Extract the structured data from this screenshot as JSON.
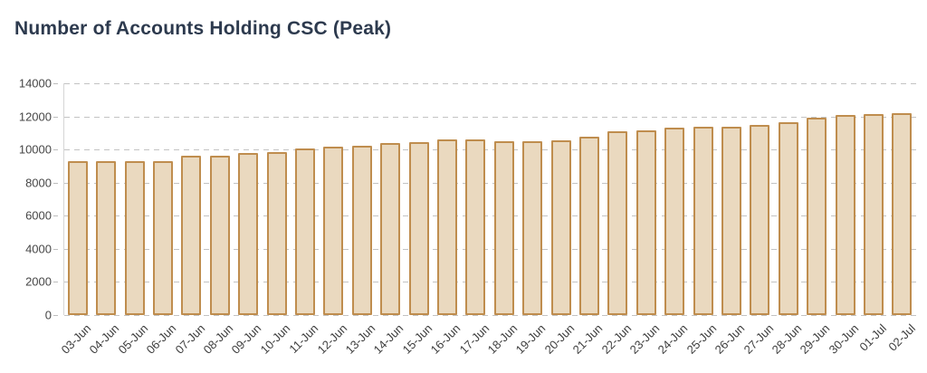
{
  "chart_data": {
    "type": "bar",
    "title": "Number of Accounts Holding CSC (Peak)",
    "xlabel": "",
    "ylabel": "",
    "categories": [
      "03-Jun",
      "04-Jun",
      "05-Jun",
      "06-Jun",
      "07-Jun",
      "08-Jun",
      "09-Jun",
      "10-Jun",
      "11-Jun",
      "12-Jun",
      "13-Jun",
      "14-Jun",
      "15-Jun",
      "16-Jun",
      "17-Jun",
      "18-Jun",
      "19-Jun",
      "20-Jun",
      "21-Jun",
      "22-Jun",
      "23-Jun",
      "24-Jun",
      "25-Jun",
      "26-Jun",
      "27-Jun",
      "28-Jun",
      "29-Jun",
      "30-Jun",
      "01-Jul",
      "02-Jul"
    ],
    "values": [
      9300,
      9300,
      9300,
      9300,
      9600,
      9600,
      9800,
      9850,
      10050,
      10150,
      10200,
      10400,
      10450,
      10600,
      10600,
      10500,
      10500,
      10550,
      10750,
      11100,
      11150,
      11300,
      11350,
      11400,
      11500,
      11650,
      11900,
      12100,
      12150,
      12200
    ],
    "ylim": [
      0,
      14000
    ],
    "yticks": [
      0,
      2000,
      4000,
      6000,
      8000,
      10000,
      12000,
      14000
    ],
    "grid": "horizontal-dashed",
    "legend": "none",
    "tick_label_rotation_deg": -45,
    "colors": {
      "bar_fill": "#ead9bf",
      "bar_border": "#bf8d4e",
      "gridline": "#c3c3c3",
      "axis_line": "#d6d6d6",
      "y_tick_label": "#464646",
      "x_tick_label": "#3d3d3d",
      "title": "#2d3a4e",
      "background": "#ffffff"
    }
  }
}
